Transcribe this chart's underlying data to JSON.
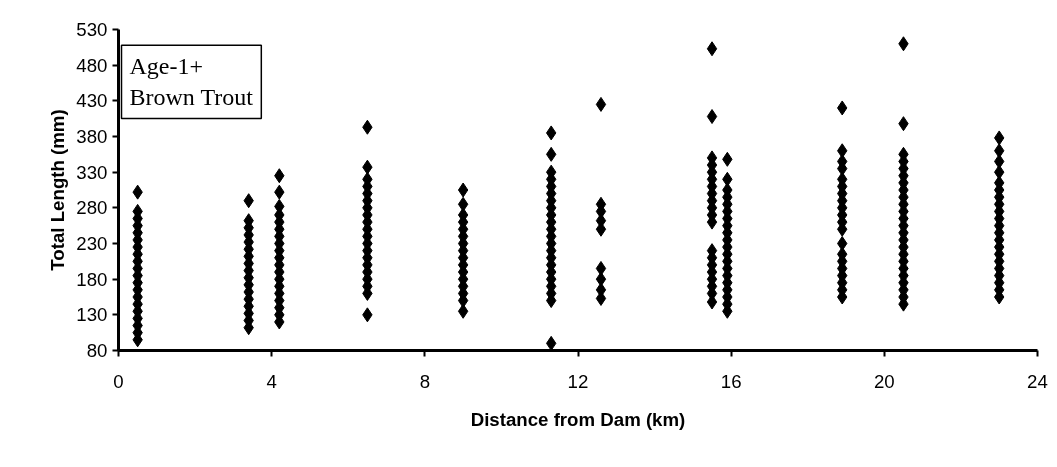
{
  "chart_data": {
    "type": "scatter",
    "xlabel": "Distance from Dam (km)",
    "ylabel": "Total Length (mm)",
    "annotations": [
      "Age-1+\nBrown Trout"
    ],
    "xlim": [
      0,
      24
    ],
    "xticks": [
      0,
      4,
      8,
      12,
      16,
      20,
      24
    ],
    "ylim": [
      80,
      530
    ],
    "yticks": [
      80,
      130,
      180,
      230,
      280,
      330,
      380,
      430,
      480,
      530
    ],
    "grid": false,
    "marker": "diamond",
    "series": [
      {
        "color": "#000000",
        "x": [
          0.5,
          0.5,
          0.5,
          0.5,
          0.5,
          0.5,
          0.5,
          0.5,
          0.5,
          0.5,
          0.5,
          0.5,
          0.5,
          0.5,
          0.5,
          0.5,
          0.5,
          0.5,
          0.5,
          0.5
        ],
        "values": [
          95,
          105,
          115,
          125,
          135,
          145,
          155,
          165,
          175,
          185,
          195,
          205,
          215,
          225,
          235,
          245,
          255,
          265,
          275,
          302
        ]
      },
      {
        "color": "#000000",
        "x": [
          3.4,
          3.4,
          3.4,
          3.4,
          3.4,
          3.4,
          3.4,
          3.4,
          3.4,
          3.4,
          3.4,
          3.4,
          3.4,
          3.4,
          3.4,
          3.4,
          3.4
        ],
        "values": [
          112,
          122,
          132,
          142,
          152,
          162,
          172,
          182,
          192,
          202,
          212,
          222,
          232,
          242,
          252,
          262,
          290
        ]
      },
      {
        "color": "#000000",
        "x": [
          4.2,
          4.2,
          4.2,
          4.2,
          4.2,
          4.2,
          4.2,
          4.2,
          4.2,
          4.2,
          4.2,
          4.2,
          4.2,
          4.2,
          4.2,
          4.2,
          4.2,
          4.2,
          4.2
        ],
        "values": [
          120,
          130,
          140,
          150,
          160,
          170,
          180,
          190,
          200,
          210,
          220,
          230,
          240,
          250,
          260,
          270,
          282,
          302,
          325
        ]
      },
      {
        "color": "#000000",
        "x": [
          6.5,
          6.5,
          6.5,
          6.5,
          6.5,
          6.5,
          6.5,
          6.5,
          6.5,
          6.5,
          6.5,
          6.5,
          6.5,
          6.5,
          6.5,
          6.5,
          6.5,
          6.5,
          6.5,
          6.5
        ],
        "values": [
          130,
          160,
          170,
          180,
          190,
          200,
          210,
          220,
          230,
          240,
          250,
          260,
          270,
          280,
          290,
          300,
          310,
          320,
          337,
          393
        ]
      },
      {
        "color": "#000000",
        "x": [
          9.0,
          9.0,
          9.0,
          9.0,
          9.0,
          9.0,
          9.0,
          9.0,
          9.0,
          9.0,
          9.0,
          9.0,
          9.0,
          9.0,
          9.0,
          9.0
        ],
        "values": [
          135,
          150,
          160,
          170,
          180,
          190,
          200,
          210,
          220,
          230,
          240,
          250,
          260,
          270,
          285,
          305
        ]
      },
      {
        "color": "#000000",
        "x": [
          11.3,
          11.3,
          11.3,
          11.3,
          11.3,
          11.3,
          11.3,
          11.3,
          11.3,
          11.3,
          11.3,
          11.3,
          11.3,
          11.3,
          11.3,
          11.3,
          11.3,
          11.3,
          11.3,
          11.3,
          11.3,
          11.3
        ],
        "values": [
          90,
          150,
          160,
          170,
          180,
          190,
          200,
          210,
          220,
          230,
          240,
          250,
          260,
          270,
          280,
          290,
          300,
          310,
          320,
          330,
          355,
          385
        ]
      },
      {
        "color": "#000000",
        "x": [
          12.6,
          12.6,
          12.6,
          12.6,
          12.6,
          12.6,
          12.6,
          12.6,
          12.6
        ],
        "values": [
          153,
          165,
          180,
          195,
          250,
          262,
          275,
          285,
          425
        ]
      },
      {
        "color": "#000000",
        "x": [
          15.5,
          15.5,
          15.5,
          15.5,
          15.5,
          15.5,
          15.5,
          15.5,
          15.5,
          15.5,
          15.5,
          15.5,
          15.5,
          15.5,
          15.5,
          15.5,
          15.5,
          15.5,
          15.5,
          15.5
        ],
        "values": [
          148,
          160,
          170,
          180,
          190,
          200,
          210,
          220,
          260,
          270,
          280,
          290,
          300,
          310,
          320,
          330,
          340,
          350,
          408,
          503
        ]
      },
      {
        "color": "#000000",
        "x": [
          15.9,
          15.9,
          15.9,
          15.9,
          15.9,
          15.9,
          15.9,
          15.9,
          15.9,
          15.9,
          15.9,
          15.9,
          15.9,
          15.9,
          15.9,
          15.9,
          15.9,
          15.9,
          15.9,
          15.9
        ],
        "values": [
          135,
          145,
          155,
          165,
          175,
          185,
          195,
          205,
          215,
          225,
          235,
          245,
          255,
          265,
          275,
          285,
          295,
          305,
          320,
          348
        ]
      },
      {
        "color": "#000000",
        "x": [
          18.9,
          18.9,
          18.9,
          18.9,
          18.9,
          18.9,
          18.9,
          18.9,
          18.9,
          18.9,
          18.9,
          18.9,
          18.9,
          18.9,
          18.9,
          18.9,
          18.9,
          18.9,
          18.9,
          18.9
        ],
        "values": [
          155,
          165,
          175,
          185,
          195,
          205,
          215,
          230,
          250,
          260,
          270,
          280,
          290,
          300,
          310,
          320,
          335,
          345,
          360,
          420
        ]
      },
      {
        "color": "#000000",
        "x": [
          20.5,
          20.5,
          20.5,
          20.5,
          20.5,
          20.5,
          20.5,
          20.5,
          20.5,
          20.5,
          20.5,
          20.5,
          20.5,
          20.5,
          20.5,
          20.5,
          20.5,
          20.5,
          20.5,
          20.5,
          20.5,
          20.5,
          20.5,
          20.5
        ],
        "values": [
          145,
          155,
          165,
          175,
          185,
          195,
          205,
          215,
          225,
          235,
          245,
          255,
          265,
          275,
          285,
          295,
          305,
          315,
          325,
          335,
          345,
          355,
          398,
          510
        ]
      },
      {
        "color": "#000000",
        "x": [
          23.0,
          23.0,
          23.0,
          23.0,
          23.0,
          23.0,
          23.0,
          23.0,
          23.0,
          23.0,
          23.0,
          23.0,
          23.0,
          23.0,
          23.0,
          23.0,
          23.0,
          23.0,
          23.0,
          23.0,
          23.0
        ],
        "values": [
          155,
          165,
          175,
          185,
          195,
          205,
          215,
          225,
          235,
          245,
          255,
          265,
          275,
          285,
          295,
          305,
          315,
          330,
          345,
          360,
          378
        ]
      }
    ]
  }
}
